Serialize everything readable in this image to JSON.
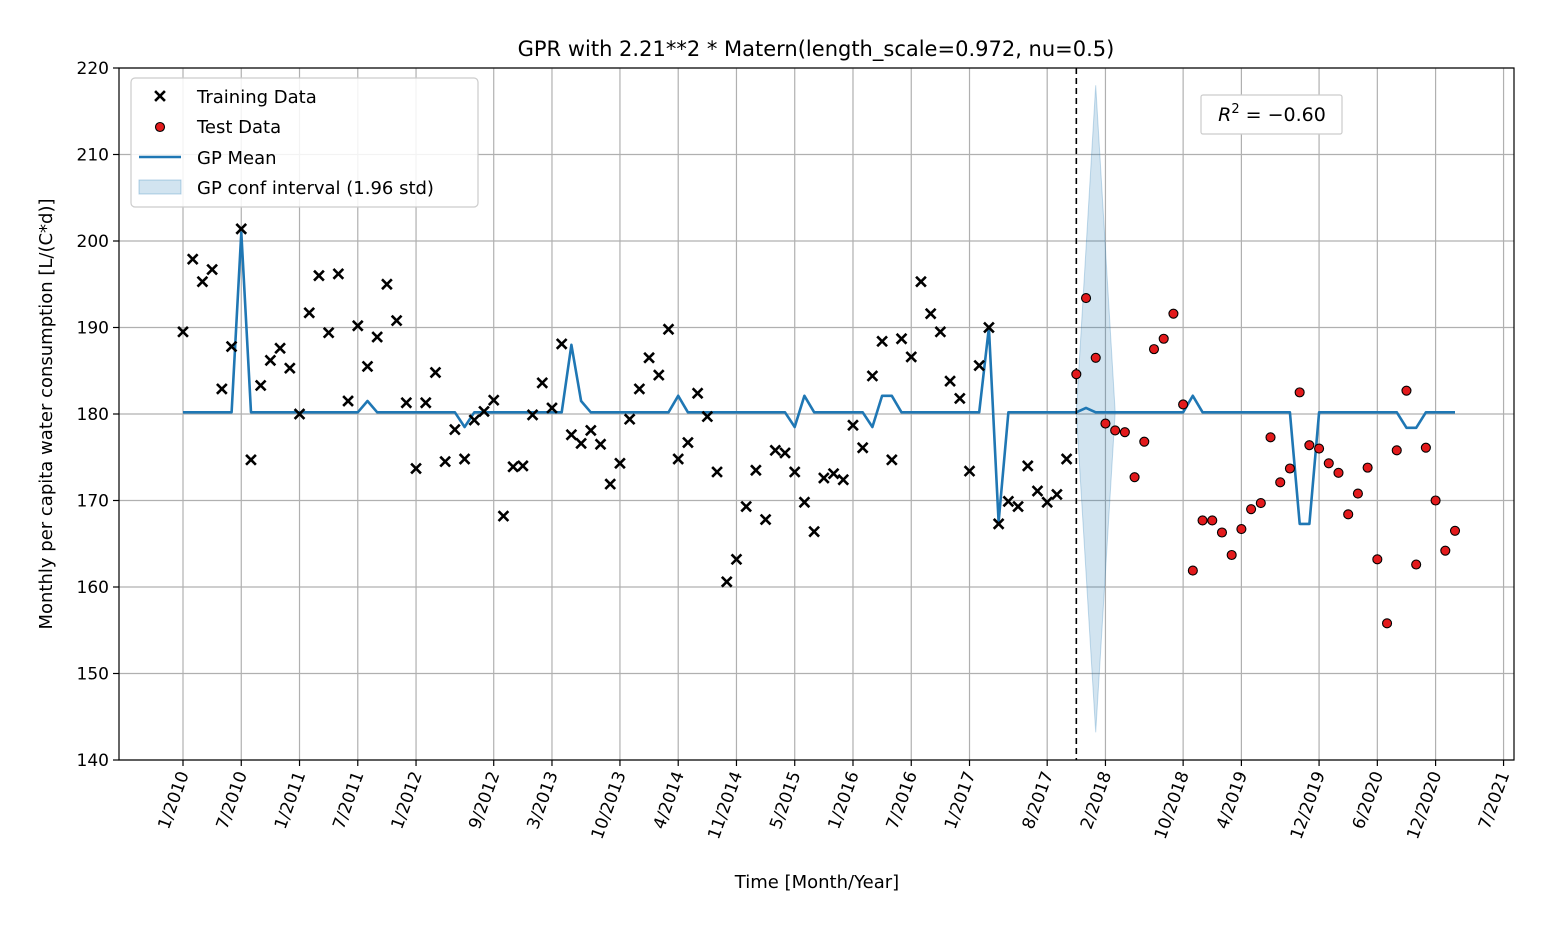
{
  "chart_data": {
    "type": "line",
    "title": "GPR with 2.21**2 * Matern(length_scale=0.972, nu=0.5)",
    "xlabel": "Time [Month/Year]",
    "ylabel": "Monthly per capita water consumption [L/(C*d)]",
    "ylim": [
      140,
      220
    ],
    "yticks": [
      140,
      150,
      160,
      170,
      180,
      190,
      200,
      210,
      220
    ],
    "xlim": [
      -6.5,
      138.5
    ],
    "xticks": [
      0,
      6,
      12,
      18,
      24,
      32,
      38,
      45,
      51,
      57,
      63,
      69,
      75,
      81,
      89,
      95,
      103,
      109,
      117,
      123,
      129,
      136
    ],
    "xticklabels": [
      "1/2010",
      "7/2010",
      "1/2011",
      "7/2011",
      "1/2012",
      "9/2012",
      "3/2013",
      "10/2013",
      "4/2014",
      "11/2014",
      "5/2015",
      "1/2016",
      "7/2016",
      "1/2017",
      "8/2017",
      "2/2018",
      "10/2018",
      "4/2019",
      "12/2019",
      "6/2020",
      "12/2020",
      "7/2021"
    ],
    "grid": true,
    "legend_position": "upper-left",
    "annotation": "R^2 = -0.60",
    "train_test_split_x": 92,
    "training": [
      189.5,
      197.9,
      195.3,
      196.7,
      182.9,
      187.8,
      201.4,
      174.7,
      183.3,
      186.2,
      187.6,
      185.3,
      180.0,
      191.7,
      196.0,
      189.4,
      196.2,
      181.5,
      190.2,
      185.5,
      188.9,
      195.0,
      190.8,
      181.3,
      173.7,
      181.3,
      184.8,
      174.5,
      178.2,
      174.8,
      179.3,
      180.3,
      181.6,
      168.2,
      173.9,
      174.0,
      179.9,
      183.6,
      180.7,
      188.1,
      177.6,
      176.6,
      178.1,
      176.5,
      171.9,
      174.3,
      179.4,
      182.9,
      186.5,
      184.5,
      189.8,
      174.8,
      176.7,
      182.4,
      179.7,
      173.3,
      160.6,
      163.2,
      169.3,
      173.5,
      167.8,
      175.8,
      175.5,
      173.3,
      169.8,
      166.4,
      172.6,
      173.1,
      172.4,
      178.7,
      176.1,
      184.4,
      188.4,
      174.7,
      188.7,
      186.6,
      195.3,
      191.6,
      189.5,
      183.8,
      181.8,
      173.4,
      185.6,
      190.0,
      167.3,
      169.9,
      169.3,
      174.0,
      171.1,
      169.8,
      170.7,
      174.8
    ],
    "test_start_x": 92,
    "test": [
      184.6,
      193.4,
      186.5,
      178.9,
      178.1,
      177.9,
      172.7,
      176.8,
      187.5,
      188.7,
      191.6,
      181.1,
      161.9,
      167.7,
      167.7,
      166.3,
      163.7,
      166.7,
      169.0,
      169.7,
      177.3,
      172.1,
      173.7,
      182.5,
      176.4,
      176.0,
      174.3,
      173.2,
      168.4,
      170.8,
      173.8,
      163.2,
      155.8,
      175.8,
      182.7,
      162.6,
      176.1,
      170.0,
      164.2,
      166.5
    ],
    "gp_mean": [
      [
        0,
        180.2
      ],
      [
        5,
        180.2
      ],
      [
        6,
        201.0
      ],
      [
        7,
        180.2
      ],
      [
        18,
        180.2
      ],
      [
        19,
        181.5
      ],
      [
        20,
        180.2
      ],
      [
        28,
        180.2
      ],
      [
        29,
        178.5
      ],
      [
        30,
        180.2
      ],
      [
        39,
        180.2
      ],
      [
        40,
        188.0
      ],
      [
        41,
        181.5
      ],
      [
        42,
        180.2
      ],
      [
        50,
        180.2
      ],
      [
        51,
        182.1
      ],
      [
        52,
        180.2
      ],
      [
        62,
        180.2
      ],
      [
        63,
        178.5
      ],
      [
        64,
        182.1
      ],
      [
        65,
        180.2
      ],
      [
        70,
        180.2
      ],
      [
        71,
        178.5
      ],
      [
        72,
        182.1
      ],
      [
        73,
        182.1
      ],
      [
        74,
        180.2
      ],
      [
        82,
        180.2
      ],
      [
        83,
        190.0
      ],
      [
        84,
        167.5
      ],
      [
        85,
        180.2
      ],
      [
        92,
        180.2
      ],
      [
        93,
        180.7
      ],
      [
        94,
        180.2
      ],
      [
        103,
        180.2
      ],
      [
        104,
        182.1
      ],
      [
        105,
        180.2
      ],
      [
        114,
        180.2
      ],
      [
        115,
        167.3
      ],
      [
        116,
        167.3
      ],
      [
        117,
        180.2
      ],
      [
        125,
        180.2
      ],
      [
        126,
        178.4
      ],
      [
        127,
        178.4
      ],
      [
        128,
        180.2
      ],
      [
        131,
        180.2
      ]
    ],
    "gp_conf_band": [
      [
        92,
        180.2,
        180.2
      ],
      [
        94,
        218.0,
        143.2
      ],
      [
        96,
        180.2,
        180.2
      ]
    ],
    "series": [
      {
        "name": "Training Data",
        "color": "#000000",
        "marker": "x"
      },
      {
        "name": "Test Data",
        "color": "#e31a1c",
        "marker": "circle"
      },
      {
        "name": "GP Mean",
        "color": "#1f77b4"
      },
      {
        "name": "GP conf interval (1.96 std)",
        "color": "#1f77b4"
      }
    ]
  }
}
